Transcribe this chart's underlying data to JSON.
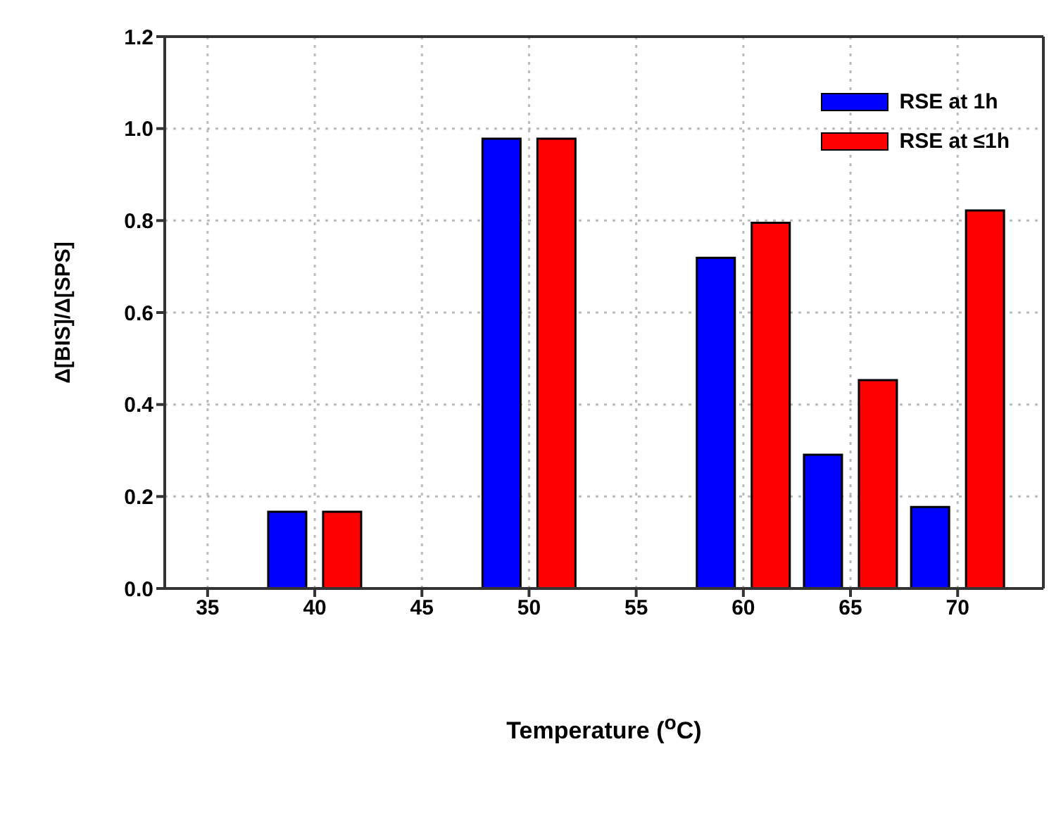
{
  "chart_data": {
    "type": "bar",
    "xlabel": "Temperature ($^{o}$C)",
    "ylabel": "Δ[BIS]/Δ[SPS]",
    "x": [
      40,
      50,
      60,
      65,
      70
    ],
    "series": [
      {
        "name": "RSE at 1h",
        "color": "#0000ff",
        "values": [
          0.167,
          0.978,
          0.719,
          0.291,
          0.177
        ]
      },
      {
        "name": "RSE at ≤1h",
        "color": "#ff0000",
        "values": [
          0.167,
          0.978,
          0.795,
          0.453,
          0.822
        ]
      }
    ],
    "xlim": [
      33,
      74
    ],
    "xticks": [
      35,
      40,
      45,
      50,
      55,
      60,
      65,
      70
    ],
    "ylim": [
      0,
      1.2
    ],
    "yticks": [
      {
        "value": 0,
        "label": "0.0"
      },
      0.2,
      0.4,
      0.6,
      0.8,
      {
        "value": 1,
        "label": "1.0"
      },
      1.2
    ],
    "grid": true,
    "legend": "top right"
  }
}
